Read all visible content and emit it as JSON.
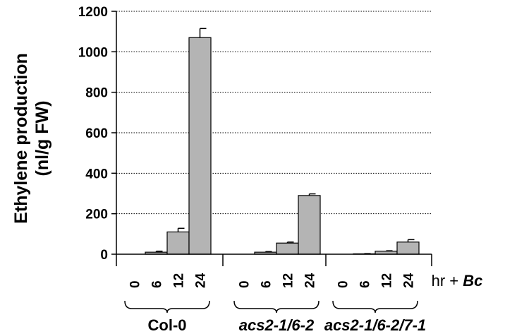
{
  "chart_data": {
    "type": "bar",
    "ylabel_line1": "Ethylene production",
    "ylabel_line2": "(nl/g FW)",
    "ylim": [
      0,
      1200
    ],
    "yticks": [
      0,
      200,
      400,
      600,
      800,
      1000,
      1200
    ],
    "grid": "horizontal dotted",
    "bar_color": "#b4b4b4",
    "x_unit_prefix": "hr + ",
    "x_unit_italic": "Bc",
    "groups": [
      {
        "name": "Col-0",
        "italic": false,
        "categories": [
          "0",
          "6",
          "12",
          "24"
        ],
        "values": [
          0,
          10,
          110,
          1070
        ],
        "errors": [
          0,
          5,
          18,
          45
        ]
      },
      {
        "name": "acs2-1/6-2",
        "italic": true,
        "categories": [
          "0",
          "6",
          "12",
          "24"
        ],
        "values": [
          0,
          10,
          55,
          290
        ],
        "errors": [
          0,
          3,
          5,
          8
        ]
      },
      {
        "name": "acs2-1/6-2/7-1",
        "italic": true,
        "categories": [
          "0",
          "6",
          "12",
          "24"
        ],
        "values": [
          0,
          2,
          15,
          60
        ],
        "errors": [
          0,
          1,
          2,
          12
        ]
      }
    ]
  }
}
